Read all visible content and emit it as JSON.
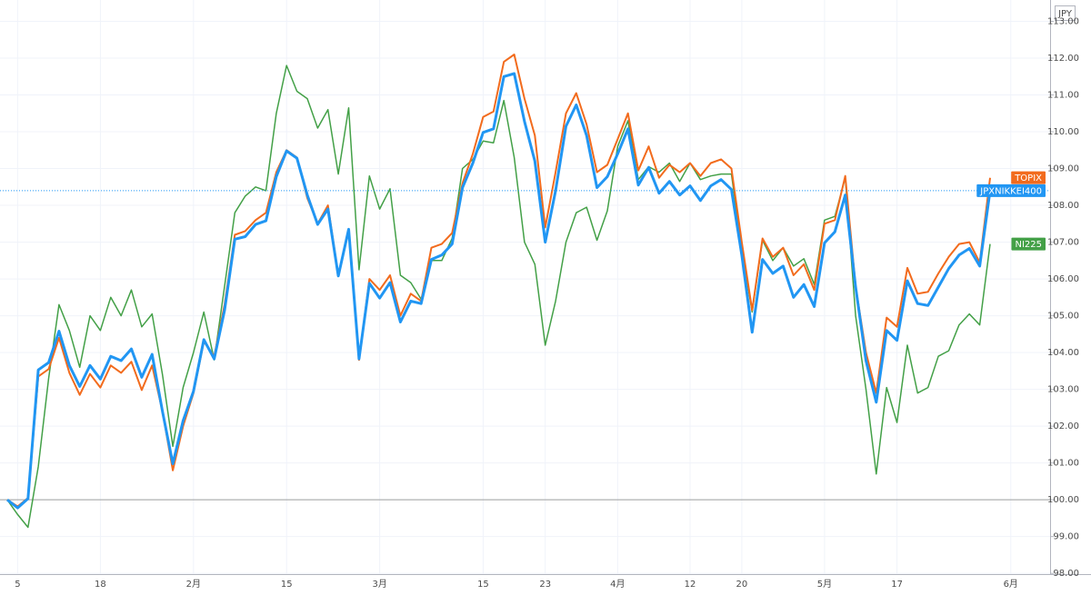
{
  "chart_data": {
    "type": "line",
    "currency_label": "JPY",
    "categories": [
      null,
      "5",
      null,
      null,
      null,
      null,
      null,
      null,
      null,
      "18",
      null,
      null,
      null,
      null,
      null,
      null,
      null,
      null,
      "2月",
      null,
      null,
      null,
      null,
      null,
      null,
      null,
      null,
      "15",
      null,
      null,
      null,
      null,
      null,
      null,
      null,
      null,
      "3月",
      null,
      null,
      null,
      null,
      null,
      null,
      null,
      null,
      null,
      "15",
      null,
      null,
      null,
      null,
      null,
      "23",
      null,
      null,
      null,
      null,
      null,
      null,
      "4月",
      null,
      null,
      null,
      null,
      null,
      null,
      "12",
      null,
      null,
      null,
      null,
      "20",
      null,
      null,
      null,
      null,
      null,
      null,
      null,
      "5月",
      null,
      null,
      null,
      null,
      null,
      null,
      "17",
      null,
      null,
      null,
      null,
      null,
      null,
      null,
      null,
      null,
      null,
      "6月"
    ],
    "series": [
      {
        "name": "NI225",
        "color": "#43a047",
        "width": 1.5,
        "values": [
          100.0,
          99.6,
          99.25,
          100.9,
          103.3,
          105.3,
          104.6,
          103.6,
          105.0,
          104.6,
          105.5,
          105.0,
          105.7,
          104.7,
          105.05,
          103.4,
          101.45,
          103.05,
          104.0,
          105.1,
          103.8,
          105.8,
          107.8,
          108.25,
          108.5,
          108.4,
          110.5,
          111.8,
          111.1,
          110.9,
          110.1,
          110.6,
          108.85,
          110.65,
          106.25,
          108.8,
          107.9,
          108.45,
          106.1,
          105.9,
          105.45,
          106.5,
          106.5,
          107.1,
          109.0,
          109.25,
          109.75,
          109.7,
          110.85,
          109.3,
          107.0,
          106.4,
          104.2,
          105.4,
          107.0,
          107.8,
          107.95,
          107.05,
          107.85,
          109.6,
          110.3,
          108.7,
          109.05,
          108.9,
          109.15,
          108.65,
          109.15,
          108.7,
          108.8,
          108.85,
          108.85,
          106.8,
          105.1,
          107.05,
          106.5,
          106.85,
          106.35,
          106.55,
          105.85,
          107.6,
          107.7,
          108.75,
          105.0,
          103.0,
          100.7,
          103.05,
          102.1,
          104.2,
          102.9,
          103.05,
          103.9,
          104.05,
          104.75,
          105.05,
          104.75,
          106.95,
          null,
          null
        ]
      },
      {
        "name": "TOPIX",
        "color": "#f26b1d",
        "width": 2,
        "values": [
          100.0,
          99.82,
          100.05,
          103.35,
          103.55,
          104.4,
          103.45,
          102.85,
          103.42,
          103.05,
          103.65,
          103.45,
          103.75,
          102.98,
          103.65,
          102.4,
          100.8,
          102.0,
          102.9,
          104.3,
          103.9,
          105.3,
          107.2,
          107.3,
          107.6,
          107.8,
          108.9,
          109.5,
          109.3,
          108.2,
          107.5,
          108.0,
          106.1,
          107.3,
          103.8,
          106.0,
          105.7,
          106.1,
          105.0,
          105.6,
          105.4,
          106.85,
          106.95,
          107.25,
          108.6,
          109.4,
          110.4,
          110.55,
          111.9,
          112.1,
          110.9,
          109.9,
          107.4,
          108.9,
          110.5,
          111.05,
          110.2,
          108.9,
          109.1,
          109.8,
          110.5,
          108.95,
          109.6,
          108.75,
          109.1,
          108.9,
          109.15,
          108.8,
          109.15,
          109.25,
          109.0,
          107.0,
          105.15,
          107.1,
          106.6,
          106.85,
          106.1,
          106.4,
          105.7,
          107.5,
          107.6,
          108.8,
          105.8,
          104.0,
          102.9,
          104.95,
          104.7,
          106.3,
          105.6,
          105.65,
          106.15,
          106.6,
          106.95,
          107.0,
          106.45,
          108.75,
          null,
          null
        ]
      },
      {
        "name": "JPXNIKKEI400",
        "color": "#2196f3",
        "width": 3,
        "price_line": true,
        "values": [
          100.0,
          99.78,
          100.03,
          103.53,
          103.73,
          104.58,
          103.65,
          103.08,
          103.65,
          103.28,
          103.9,
          103.78,
          104.1,
          103.33,
          103.95,
          102.4,
          100.98,
          102.15,
          102.95,
          104.35,
          103.83,
          105.15,
          107.08,
          107.15,
          107.48,
          107.58,
          108.78,
          109.48,
          109.28,
          108.28,
          107.48,
          107.9,
          106.08,
          107.35,
          103.83,
          105.88,
          105.48,
          105.9,
          104.83,
          105.4,
          105.33,
          106.53,
          106.65,
          106.95,
          108.48,
          109.15,
          109.98,
          110.08,
          111.5,
          111.58,
          110.28,
          109.2,
          107.0,
          108.4,
          110.15,
          110.73,
          109.9,
          108.48,
          108.78,
          109.4,
          110.08,
          108.55,
          109.03,
          108.33,
          108.65,
          108.28,
          108.53,
          108.13,
          108.53,
          108.7,
          108.43,
          106.65,
          104.55,
          106.53,
          106.15,
          106.35,
          105.5,
          105.85,
          105.25,
          106.98,
          107.28,
          108.28,
          105.78,
          103.78,
          102.65,
          104.6,
          104.33,
          105.95,
          105.33,
          105.28,
          105.78,
          106.28,
          106.65,
          106.83,
          106.35,
          108.4,
          null,
          null
        ]
      }
    ],
    "baseline": 100,
    "ylim": [
      97.98,
      113.58
    ],
    "yticks": [
      {
        "value": 98,
        "label": "98.00"
      },
      {
        "value": 99,
        "label": "99.00"
      },
      {
        "value": 100,
        "label": "100.00"
      },
      {
        "value": 101,
        "label": "101.00"
      },
      {
        "value": 102,
        "label": "102.00"
      },
      {
        "value": 103,
        "label": "103.00"
      },
      {
        "value": 104,
        "label": "104.00"
      },
      {
        "value": 105,
        "label": "105.00"
      },
      {
        "value": 106,
        "label": "106.00"
      },
      {
        "value": 107,
        "label": "107.00"
      },
      {
        "value": 108,
        "label": "108.00"
      },
      {
        "value": 109,
        "label": "109.00"
      },
      {
        "value": 110,
        "label": "110.00"
      },
      {
        "value": 111,
        "label": "111.00"
      },
      {
        "value": 112,
        "label": "112.00"
      },
      {
        "value": 113,
        "label": "113.00"
      }
    ],
    "grid": true
  }
}
